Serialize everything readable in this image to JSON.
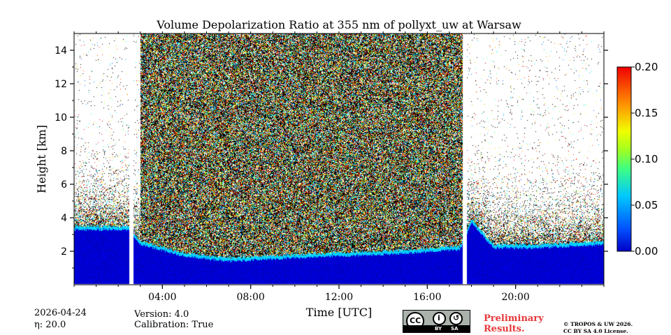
{
  "chart_data": {
    "type": "heatmap",
    "title": "Volume Depolarization Ratio at 355 nm of pollyxt_uw at Warsaw",
    "xlabel": "Time [UTC]",
    "ylabel": "Height [km]",
    "xlim_hours": [
      0,
      24
    ],
    "ylim_km": [
      0,
      15
    ],
    "x_ticks": [
      {
        "hour": 4,
        "label": "04:00"
      },
      {
        "hour": 8,
        "label": "08:00"
      },
      {
        "hour": 12,
        "label": "12:00"
      },
      {
        "hour": 16,
        "label": "16:00"
      },
      {
        "hour": 20,
        "label": "20:00"
      }
    ],
    "y_ticks": [
      {
        "km": 2,
        "label": "2"
      },
      {
        "km": 4,
        "label": "4"
      },
      {
        "km": 6,
        "label": "6"
      },
      {
        "km": 8,
        "label": "8"
      },
      {
        "km": 10,
        "label": "10"
      },
      {
        "km": 12,
        "label": "12"
      },
      {
        "km": 14,
        "label": "14"
      }
    ],
    "colorbar": {
      "min": 0.0,
      "max": 0.2,
      "ticks": [
        "0.00",
        "0.05",
        "0.10",
        "0.15",
        "0.20"
      ],
      "tick_values": [
        0.0,
        0.05,
        0.1,
        0.15,
        0.2
      ],
      "colormap": "jet"
    },
    "data_gaps_hours": [
      [
        2.5,
        2.7
      ],
      [
        17.6,
        17.8
      ]
    ],
    "dense_noise_period_hours": [
      3.0,
      17.6
    ],
    "boundary_layer_top_km": [
      {
        "hour": 0,
        "km": 3.5
      },
      {
        "hour": 2.5,
        "km": 3.5
      },
      {
        "hour": 3,
        "km": 2.6
      },
      {
        "hour": 5,
        "km": 1.9
      },
      {
        "hour": 7,
        "km": 1.6
      },
      {
        "hour": 10,
        "km": 1.8
      },
      {
        "hour": 14,
        "km": 2.0
      },
      {
        "hour": 17.5,
        "km": 2.3
      },
      {
        "hour": 18,
        "km": 3.9
      },
      {
        "hour": 19,
        "km": 2.4
      },
      {
        "hour": 21,
        "km": 2.4
      },
      {
        "hour": 24,
        "km": 2.6
      }
    ],
    "boundary_layer_value": 0.01,
    "noise_value_range": [
      0.04,
      0.2
    ]
  },
  "footer": {
    "date": "2026-04-24",
    "eta": "η: 20.0",
    "version": "Version: 4.0",
    "calibration": "Calibration: True",
    "preliminary_line1": "Preliminary",
    "preliminary_line2": "Results.",
    "copyright_line1": "© TROPOS & UW 2026.",
    "copyright_line2": "CC BY SA 4.0 License.",
    "license_badge": {
      "cc": "CC",
      "by": "BY",
      "sa": "SA"
    }
  },
  "colors": {
    "accent_red": "#e8383a"
  }
}
